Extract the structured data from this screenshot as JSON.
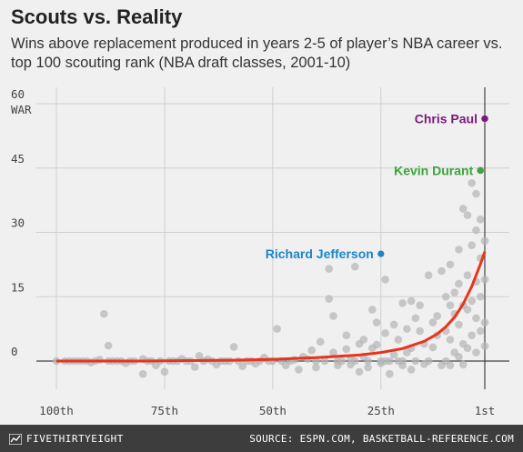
{
  "title": "Scouts vs. Reality",
  "subtitle": "Wins above replacement produced in years 2-5 of player’s NBA career vs. top 100 scouting rank (NBA draft classes, 2001-10)",
  "footer": {
    "brand": "FIVETHIRTYEIGHT",
    "source": "SOURCE: ESPN.COM, BASKETBALL-REFERENCE.COM"
  },
  "colors": {
    "background": "#f0f0f0",
    "points": "#b5b5b5",
    "trend": "#e8341c",
    "chris_paul": "#7a1a7a",
    "kevin_durant": "#3aa53a",
    "richard_jefferson": "#1a87c9",
    "footer": "#3d3d3d"
  },
  "chart_data": {
    "type": "scatter",
    "title": "Scouts vs. Reality",
    "xlabel": "",
    "ylabel": "WAR",
    "x_reversed": true,
    "xlim": [
      100,
      1
    ],
    "ylim": [
      -5,
      60
    ],
    "x_ticks": [
      {
        "value": 100,
        "label": "100th"
      },
      {
        "value": 75,
        "label": "75th"
      },
      {
        "value": 50,
        "label": "50th"
      },
      {
        "value": 25,
        "label": "25th"
      },
      {
        "value": 1,
        "label": "1st"
      }
    ],
    "y_ticks": [
      0,
      15,
      30,
      45,
      60
    ],
    "grid": true,
    "trend": {
      "name": "fit",
      "x": [
        100,
        90,
        80,
        70,
        60,
        50,
        40,
        30,
        25,
        20,
        15,
        12,
        10,
        8,
        6,
        4,
        2,
        1
      ],
      "y": [
        0,
        0,
        0,
        0.1,
        0.2,
        0.4,
        0.8,
        1.4,
        2.0,
        2.9,
        4.6,
        6.3,
        8.0,
        10.2,
        13.3,
        17.4,
        22.6,
        25.5
      ]
    },
    "highlights": [
      {
        "name": "Chris Paul",
        "rank": 1,
        "war": 56.5
      },
      {
        "name": "Kevin Durant",
        "rank": 2,
        "war": 44.4
      },
      {
        "name": "Richard Jefferson",
        "rank": 25,
        "war": 25
      }
    ],
    "points": [
      [
        100,
        0
      ],
      [
        98,
        0
      ],
      [
        97,
        0
      ],
      [
        96,
        0
      ],
      [
        95,
        0
      ],
      [
        94,
        0
      ],
      [
        93,
        0
      ],
      [
        92,
        -0.3
      ],
      [
        91,
        0
      ],
      [
        90,
        0.3
      ],
      [
        89,
        11
      ],
      [
        88,
        3.6
      ],
      [
        88,
        0
      ],
      [
        87,
        0
      ],
      [
        86,
        0
      ],
      [
        85,
        0
      ],
      [
        84,
        -0.5
      ],
      [
        83,
        0
      ],
      [
        82,
        0
      ],
      [
        80,
        0.5
      ],
      [
        80,
        -3
      ],
      [
        79,
        0
      ],
      [
        78,
        0
      ],
      [
        77,
        -1
      ],
      [
        76,
        0
      ],
      [
        75,
        -2.5
      ],
      [
        74,
        0
      ],
      [
        73,
        0
      ],
      [
        72,
        0
      ],
      [
        71,
        0.5
      ],
      [
        70,
        0
      ],
      [
        69,
        0
      ],
      [
        68,
        -1.4
      ],
      [
        67,
        1.2
      ],
      [
        66,
        0
      ],
      [
        65,
        0.4
      ],
      [
        64,
        0
      ],
      [
        63,
        -0.8
      ],
      [
        62,
        0
      ],
      [
        61,
        0
      ],
      [
        60,
        0
      ],
      [
        59,
        3.3
      ],
      [
        58,
        0
      ],
      [
        57,
        -1.2
      ],
      [
        56,
        0
      ],
      [
        55,
        0
      ],
      [
        54,
        -0.6
      ],
      [
        53,
        0
      ],
      [
        52,
        0.8
      ],
      [
        51,
        0
      ],
      [
        50,
        0
      ],
      [
        49,
        7.5
      ],
      [
        48,
        0
      ],
      [
        47,
        -1
      ],
      [
        46,
        0
      ],
      [
        45,
        0.3
      ],
      [
        44,
        -2
      ],
      [
        43,
        1
      ],
      [
        42,
        0.5
      ],
      [
        41,
        2.5
      ],
      [
        40,
        0
      ],
      [
        40,
        -1.5
      ],
      [
        39,
        4.5
      ],
      [
        38,
        0
      ],
      [
        37,
        21.5
      ],
      [
        37,
        14.5
      ],
      [
        36,
        10.5
      ],
      [
        36,
        2
      ],
      [
        35,
        -1
      ],
      [
        35,
        0
      ],
      [
        34,
        0
      ],
      [
        33,
        6
      ],
      [
        33,
        2.8
      ],
      [
        32,
        0.5
      ],
      [
        32,
        -0.8
      ],
      [
        31,
        22
      ],
      [
        31,
        0
      ],
      [
        30,
        4
      ],
      [
        30,
        -2.5
      ],
      [
        29,
        5
      ],
      [
        29,
        1
      ],
      [
        28,
        0
      ],
      [
        28,
        -1.5
      ],
      [
        27,
        3
      ],
      [
        27,
        12
      ],
      [
        26,
        3.8
      ],
      [
        26,
        9
      ],
      [
        25,
        0
      ],
      [
        25,
        -0.5
      ],
      [
        24,
        19
      ],
      [
        24,
        6.5
      ],
      [
        24,
        0
      ],
      [
        23,
        0
      ],
      [
        23,
        -3
      ],
      [
        22,
        8.5
      ],
      [
        22,
        1.5
      ],
      [
        21,
        0
      ],
      [
        21,
        5
      ],
      [
        20,
        13.5
      ],
      [
        20,
        0
      ],
      [
        20,
        -1
      ],
      [
        19,
        7.5
      ],
      [
        19,
        2
      ],
      [
        18,
        14
      ],
      [
        18,
        3
      ],
      [
        18,
        -2
      ],
      [
        17,
        10
      ],
      [
        17,
        0
      ],
      [
        16,
        7
      ],
      [
        16,
        13
      ],
      [
        15,
        4
      ],
      [
        15,
        -0.7
      ],
      [
        14,
        20
      ],
      [
        14,
        0
      ],
      [
        13,
        9
      ],
      [
        13,
        3.2
      ],
      [
        12,
        10.5
      ],
      [
        12,
        6
      ],
      [
        11,
        21
      ],
      [
        11,
        -1
      ],
      [
        10,
        15
      ],
      [
        10,
        7
      ],
      [
        10,
        0
      ],
      [
        9,
        22.5
      ],
      [
        9,
        13
      ],
      [
        9,
        5
      ],
      [
        9,
        -1
      ],
      [
        8,
        16
      ],
      [
        8,
        11
      ],
      [
        8,
        2
      ],
      [
        7,
        26
      ],
      [
        7,
        18
      ],
      [
        7,
        8.5
      ],
      [
        7,
        1
      ],
      [
        6,
        35.5
      ],
      [
        6,
        13
      ],
      [
        6,
        4
      ],
      [
        6,
        -0.8
      ],
      [
        5,
        34
      ],
      [
        5,
        20
      ],
      [
        5,
        12
      ],
      [
        5,
        3
      ],
      [
        4,
        41.5
      ],
      [
        4,
        27
      ],
      [
        4,
        14
      ],
      [
        4,
        6
      ],
      [
        3,
        39
      ],
      [
        3,
        30.5
      ],
      [
        3,
        18.5
      ],
      [
        3,
        10
      ],
      [
        3,
        2
      ],
      [
        2,
        44.5
      ],
      [
        2,
        33
      ],
      [
        2,
        24
      ],
      [
        2,
        15
      ],
      [
        2,
        7
      ],
      [
        1,
        56.5
      ],
      [
        1,
        28
      ],
      [
        1,
        19
      ],
      [
        1,
        9
      ],
      [
        1,
        3.5
      ]
    ]
  }
}
